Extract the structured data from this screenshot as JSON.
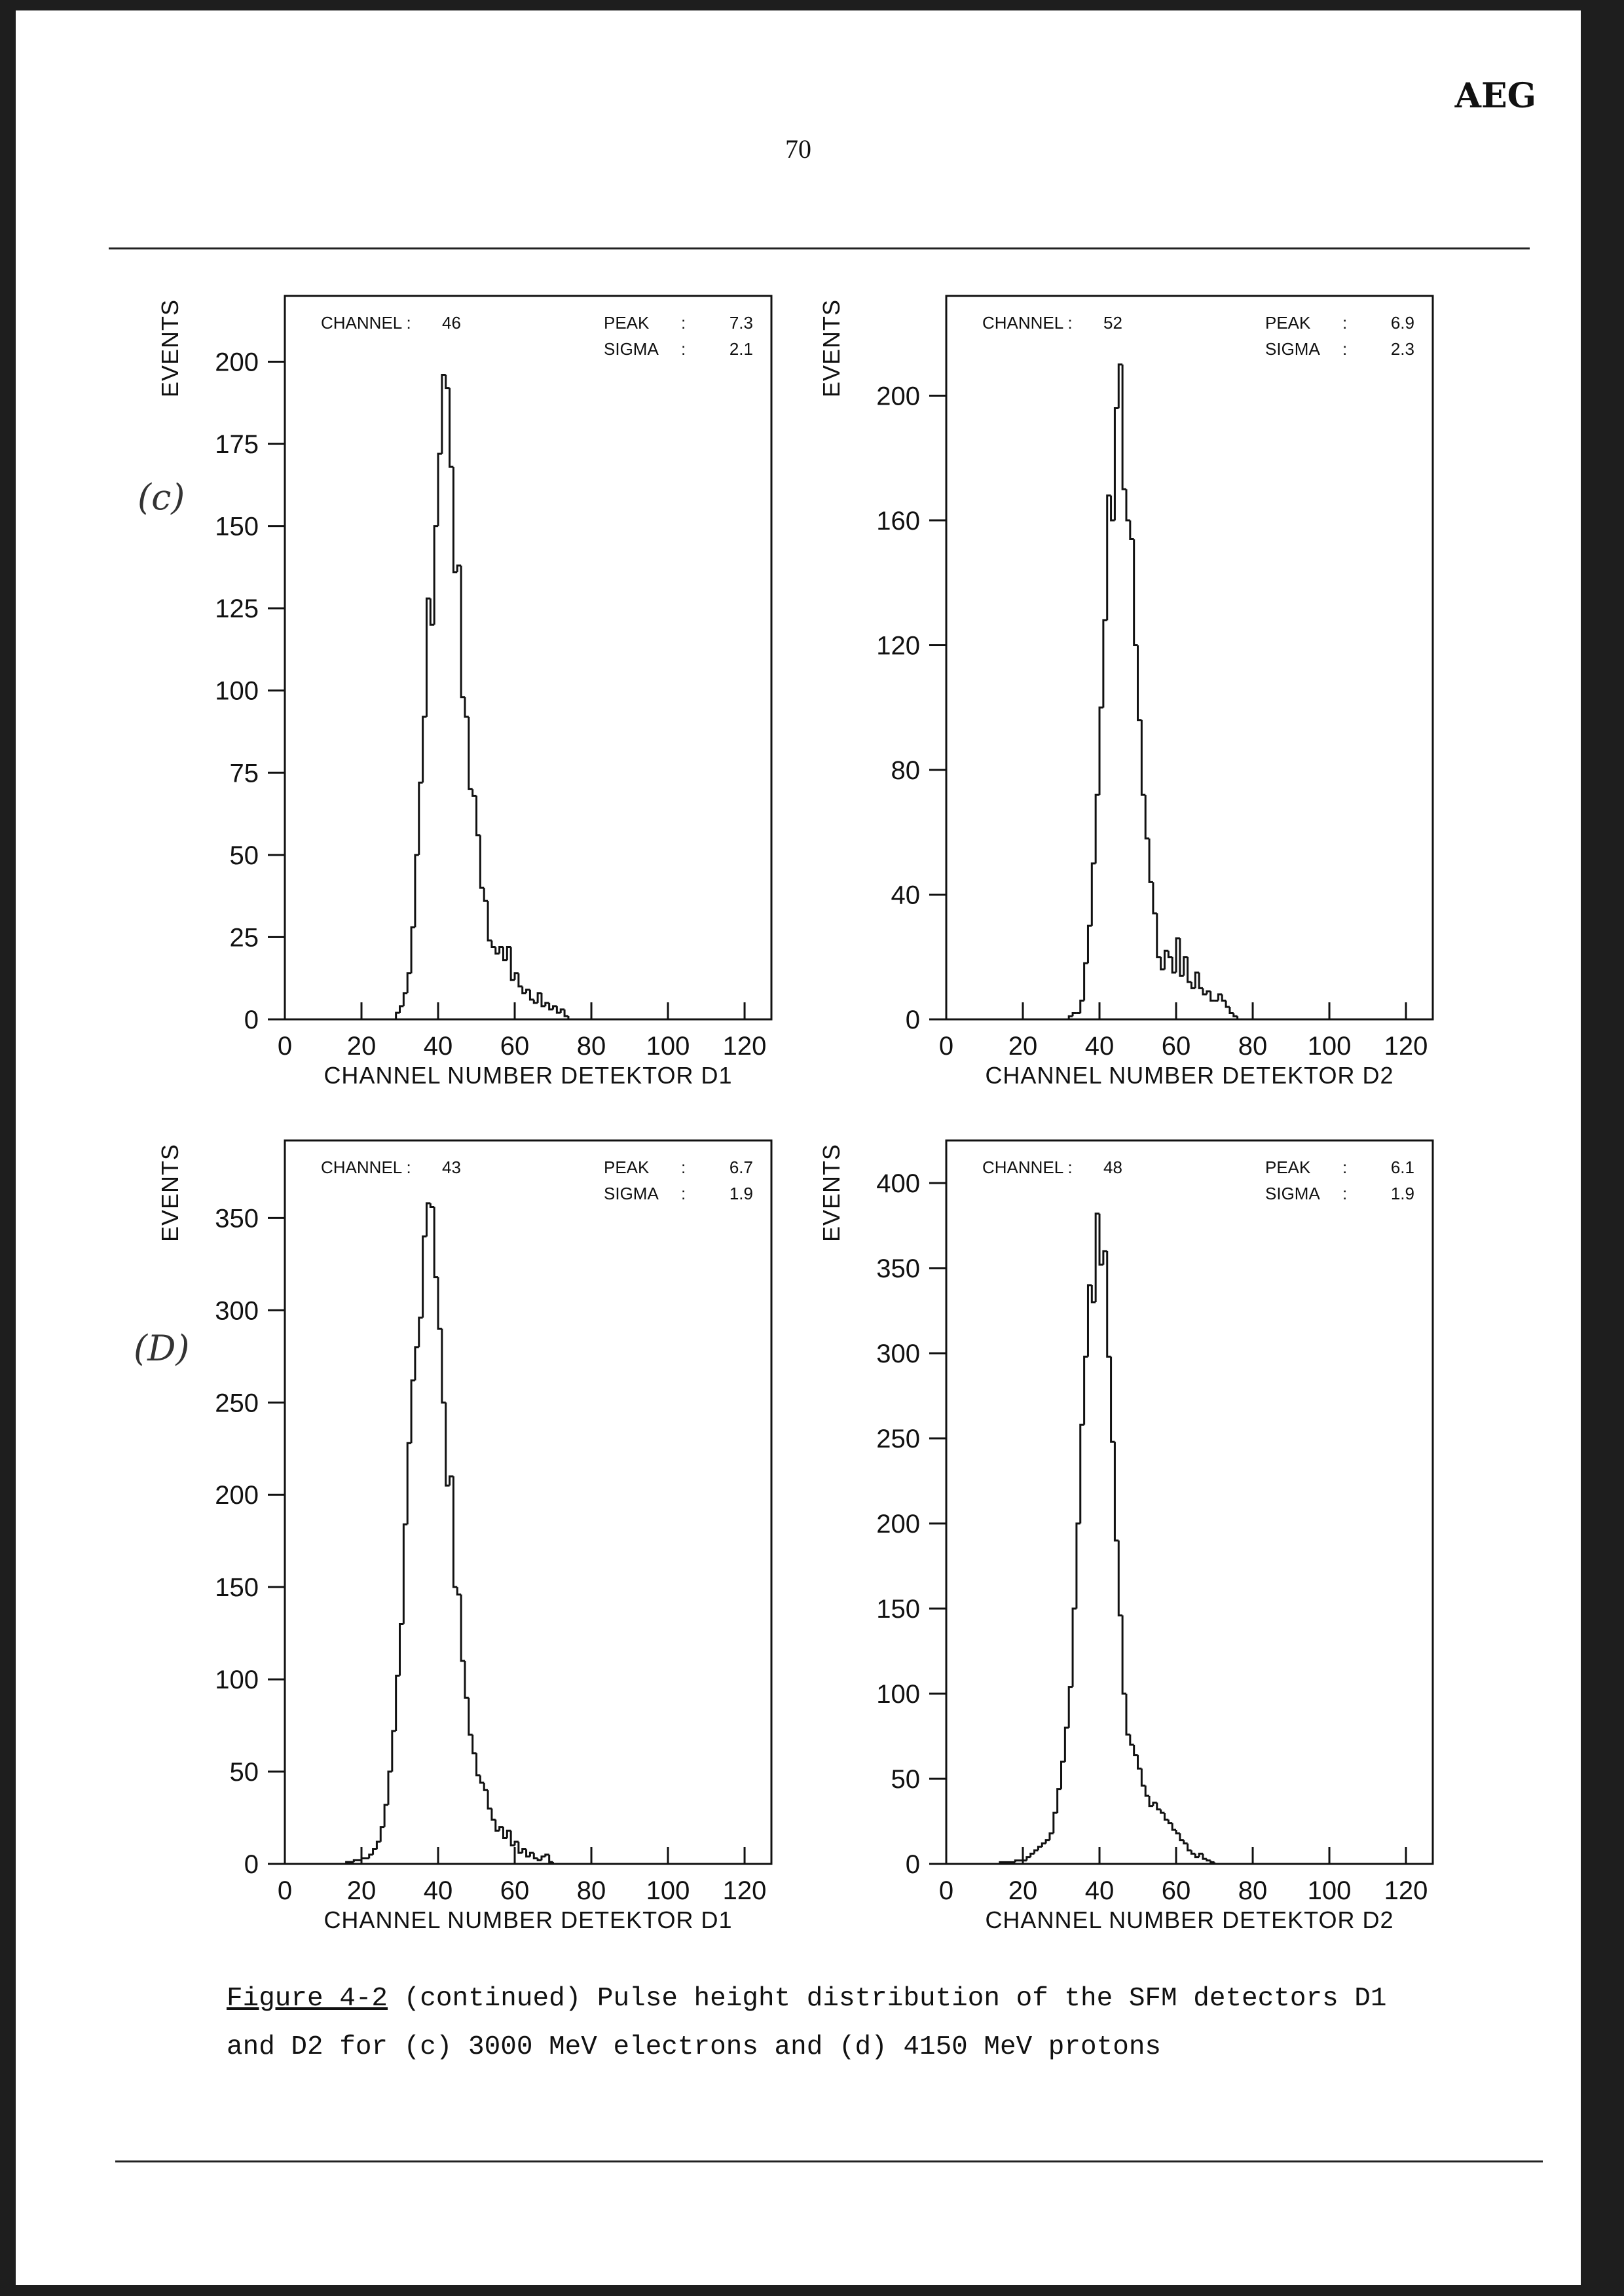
{
  "header": {
    "logo": "AEG",
    "page_number": "70"
  },
  "annotations": {
    "c": "(c)",
    "d": "(D)"
  },
  "caption": {
    "figure_ref": "Figure 4-2",
    "line1": " (continued) Pulse height distribution of the SFM detectors D1",
    "line2": "and D2 for (c) 3000 MeV electrons and (d) 4150 MeV protons"
  },
  "chart_data": [
    {
      "id": "c1",
      "type": "histogram",
      "xlabel": "CHANNEL NUMBER DETEKTOR D1",
      "ylabel": "EVENTS",
      "xlim": [
        0,
        127
      ],
      "ylim": [
        0,
        220
      ],
      "xticks": [
        0,
        20,
        40,
        60,
        80,
        100,
        120
      ],
      "yticks": [
        0,
        25,
        50,
        75,
        100,
        125,
        150,
        175,
        200
      ],
      "info": {
        "channel_label": "CHANNEL :",
        "channel": "46",
        "peak_label": "PEAK",
        "peak": "7.3",
        "sigma_label": "SIGMA",
        "sigma": "2.1",
        "colon": ":"
      },
      "points": [
        [
          28,
          0
        ],
        [
          29,
          2
        ],
        [
          30,
          4
        ],
        [
          31,
          8
        ],
        [
          32,
          14
        ],
        [
          33,
          28
        ],
        [
          34,
          50
        ],
        [
          35,
          72
        ],
        [
          36,
          92
        ],
        [
          37,
          128
        ],
        [
          38,
          120
        ],
        [
          39,
          150
        ],
        [
          40,
          172
        ],
        [
          41,
          196
        ],
        [
          42,
          192
        ],
        [
          43,
          168
        ],
        [
          44,
          136
        ],
        [
          45,
          138
        ],
        [
          46,
          98
        ],
        [
          47,
          92
        ],
        [
          48,
          70
        ],
        [
          49,
          68
        ],
        [
          50,
          56
        ],
        [
          51,
          40
        ],
        [
          52,
          36
        ],
        [
          53,
          24
        ],
        [
          54,
          22
        ],
        [
          55,
          20
        ],
        [
          56,
          22
        ],
        [
          57,
          18
        ],
        [
          58,
          22
        ],
        [
          59,
          12
        ],
        [
          60,
          14
        ],
        [
          61,
          10
        ],
        [
          62,
          8
        ],
        [
          63,
          9
        ],
        [
          64,
          6
        ],
        [
          65,
          5
        ],
        [
          66,
          8
        ],
        [
          67,
          4
        ],
        [
          68,
          5
        ],
        [
          69,
          3
        ],
        [
          70,
          4
        ],
        [
          71,
          2
        ],
        [
          72,
          3
        ],
        [
          73,
          1
        ],
        [
          74,
          0
        ]
      ]
    },
    {
      "id": "c2",
      "type": "histogram",
      "xlabel": "CHANNEL NUMBER DETEKTOR D2",
      "ylabel": "EVENTS",
      "xlim": [
        0,
        127
      ],
      "ylim": [
        0,
        232
      ],
      "xticks": [
        0,
        20,
        40,
        60,
        80,
        100,
        120
      ],
      "yticks": [
        0,
        40,
        80,
        120,
        160,
        200
      ],
      "info": {
        "channel_label": "CHANNEL :",
        "channel": "52",
        "peak_label": "PEAK",
        "peak": "6.9",
        "sigma_label": "SIGMA",
        "sigma": "2.3",
        "colon": ":"
      },
      "points": [
        [
          32,
          1
        ],
        [
          33,
          2
        ],
        [
          34,
          2
        ],
        [
          35,
          6
        ],
        [
          36,
          18
        ],
        [
          37,
          30
        ],
        [
          38,
          50
        ],
        [
          39,
          72
        ],
        [
          40,
          100
        ],
        [
          41,
          128
        ],
        [
          42,
          168
        ],
        [
          43,
          160
        ],
        [
          44,
          196
        ],
        [
          45,
          210
        ],
        [
          46,
          170
        ],
        [
          47,
          160
        ],
        [
          48,
          154
        ],
        [
          49,
          120
        ],
        [
          50,
          96
        ],
        [
          51,
          72
        ],
        [
          52,
          58
        ],
        [
          53,
          44
        ],
        [
          54,
          34
        ],
        [
          55,
          20
        ],
        [
          56,
          16
        ],
        [
          57,
          22
        ],
        [
          58,
          20
        ],
        [
          59,
          15
        ],
        [
          60,
          26
        ],
        [
          61,
          14
        ],
        [
          62,
          20
        ],
        [
          63,
          12
        ],
        [
          64,
          10
        ],
        [
          65,
          15
        ],
        [
          66,
          10
        ],
        [
          67,
          8
        ],
        [
          68,
          9
        ],
        [
          69,
          6
        ],
        [
          70,
          6
        ],
        [
          71,
          8
        ],
        [
          72,
          6
        ],
        [
          73,
          4
        ],
        [
          74,
          2
        ],
        [
          75,
          1
        ],
        [
          76,
          0
        ]
      ]
    },
    {
      "id": "d1",
      "type": "histogram",
      "xlabel": "CHANNEL NUMBER DETEKTOR D1",
      "ylabel": "EVENTS",
      "xlim": [
        0,
        127
      ],
      "ylim": [
        0,
        392
      ],
      "xticks": [
        0,
        20,
        40,
        60,
        80,
        100,
        120
      ],
      "yticks": [
        0,
        50,
        100,
        150,
        200,
        250,
        300,
        350
      ],
      "info": {
        "channel_label": "CHANNEL :",
        "channel": "43",
        "peak_label": "PEAK",
        "peak": "6.7",
        "sigma_label": "SIGMA",
        "sigma": "1.9",
        "colon": ":"
      },
      "points": [
        [
          16,
          1
        ],
        [
          18,
          2
        ],
        [
          20,
          3
        ],
        [
          22,
          5
        ],
        [
          23,
          8
        ],
        [
          24,
          12
        ],
        [
          25,
          20
        ],
        [
          26,
          32
        ],
        [
          27,
          50
        ],
        [
          28,
          72
        ],
        [
          29,
          102
        ],
        [
          30,
          130
        ],
        [
          31,
          184
        ],
        [
          32,
          228
        ],
        [
          33,
          262
        ],
        [
          34,
          280
        ],
        [
          35,
          296
        ],
        [
          36,
          340
        ],
        [
          37,
          358
        ],
        [
          38,
          356
        ],
        [
          39,
          318
        ],
        [
          40,
          290
        ],
        [
          41,
          250
        ],
        [
          42,
          205
        ],
        [
          43,
          210
        ],
        [
          44,
          150
        ],
        [
          45,
          146
        ],
        [
          46,
          110
        ],
        [
          47,
          90
        ],
        [
          48,
          70
        ],
        [
          49,
          60
        ],
        [
          50,
          48
        ],
        [
          51,
          44
        ],
        [
          52,
          40
        ],
        [
          53,
          30
        ],
        [
          54,
          24
        ],
        [
          55,
          18
        ],
        [
          56,
          20
        ],
        [
          57,
          14
        ],
        [
          58,
          18
        ],
        [
          59,
          10
        ],
        [
          60,
          12
        ],
        [
          61,
          6
        ],
        [
          62,
          8
        ],
        [
          63,
          4
        ],
        [
          64,
          6
        ],
        [
          65,
          3
        ],
        [
          66,
          2
        ],
        [
          67,
          4
        ],
        [
          68,
          5
        ],
        [
          69,
          1
        ],
        [
          70,
          0
        ]
      ]
    },
    {
      "id": "d2",
      "type": "histogram",
      "xlabel": "CHANNEL NUMBER DETEKTOR D2",
      "ylabel": "EVENTS",
      "xlim": [
        0,
        127
      ],
      "ylim": [
        0,
        425
      ],
      "xticks": [
        0,
        20,
        40,
        60,
        80,
        100,
        120
      ],
      "yticks": [
        0,
        50,
        100,
        150,
        200,
        250,
        300,
        350,
        400
      ],
      "info": {
        "channel_label": "CHANNEL :",
        "channel": "48",
        "peak_label": "PEAK",
        "peak": "6.1",
        "sigma_label": "SIGMA",
        "sigma": "1.9",
        "colon": ":"
      },
      "points": [
        [
          14,
          1
        ],
        [
          18,
          2
        ],
        [
          21,
          4
        ],
        [
          22,
          6
        ],
        [
          23,
          8
        ],
        [
          24,
          10
        ],
        [
          25,
          12
        ],
        [
          26,
          14
        ],
        [
          27,
          18
        ],
        [
          28,
          30
        ],
        [
          29,
          44
        ],
        [
          30,
          60
        ],
        [
          31,
          80
        ],
        [
          32,
          104
        ],
        [
          33,
          150
        ],
        [
          34,
          200
        ],
        [
          35,
          258
        ],
        [
          36,
          298
        ],
        [
          37,
          340
        ],
        [
          38,
          330
        ],
        [
          39,
          382
        ],
        [
          40,
          352
        ],
        [
          41,
          360
        ],
        [
          42,
          298
        ],
        [
          43,
          248
        ],
        [
          44,
          190
        ],
        [
          45,
          146
        ],
        [
          46,
          100
        ],
        [
          47,
          76
        ],
        [
          48,
          70
        ],
        [
          49,
          64
        ],
        [
          50,
          56
        ],
        [
          51,
          46
        ],
        [
          52,
          40
        ],
        [
          53,
          34
        ],
        [
          54,
          36
        ],
        [
          55,
          32
        ],
        [
          56,
          30
        ],
        [
          57,
          26
        ],
        [
          58,
          24
        ],
        [
          59,
          20
        ],
        [
          60,
          18
        ],
        [
          61,
          14
        ],
        [
          62,
          12
        ],
        [
          63,
          8
        ],
        [
          64,
          6
        ],
        [
          65,
          4
        ],
        [
          66,
          6
        ],
        [
          67,
          3
        ],
        [
          68,
          2
        ],
        [
          69,
          1
        ],
        [
          70,
          0
        ]
      ]
    }
  ]
}
